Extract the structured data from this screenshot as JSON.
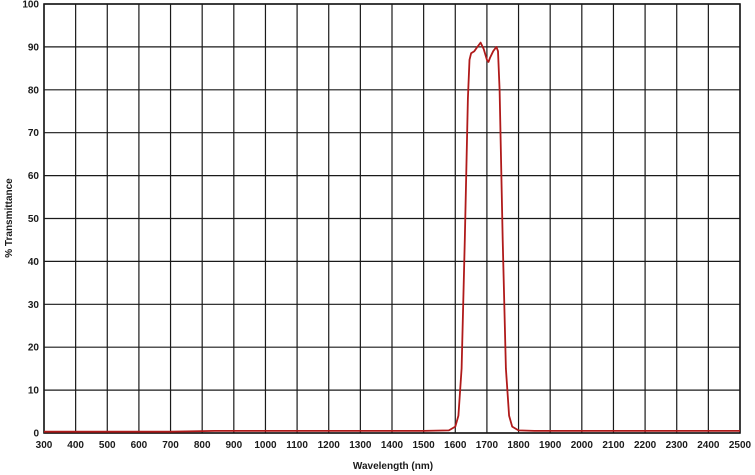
{
  "chart_data": {
    "type": "line",
    "title": "",
    "xlabel": "Wavelength (nm)",
    "ylabel": "% Transmittance",
    "xlim": [
      300,
      2500
    ],
    "ylim": [
      0,
      100
    ],
    "x_ticks": [
      300,
      400,
      500,
      600,
      700,
      800,
      900,
      1000,
      1100,
      1200,
      1300,
      1400,
      1500,
      1600,
      1700,
      1800,
      1900,
      2000,
      2100,
      2200,
      2300,
      2400,
      2500
    ],
    "y_ticks": [
      0,
      10,
      20,
      30,
      40,
      50,
      60,
      70,
      80,
      90,
      100
    ],
    "grid": true,
    "line_color": "#b01a1a",
    "grid_color": "#1a1a1a",
    "series": [
      {
        "x": [
          300,
          700,
          840,
          1000,
          1300,
          1500,
          1580,
          1600,
          1610,
          1620,
          1630,
          1640,
          1645,
          1650,
          1660,
          1670,
          1680,
          1690,
          1700,
          1705,
          1710,
          1720,
          1730,
          1735,
          1740,
          1750,
          1760,
          1770,
          1780,
          1800,
          1850,
          2000,
          2500
        ],
        "values": [
          0.3,
          0.3,
          0.5,
          0.5,
          0.5,
          0.5,
          0.6,
          1.5,
          4,
          15,
          45,
          78,
          87,
          88.5,
          89,
          90,
          91,
          89.5,
          87,
          86.5,
          87.5,
          89,
          90,
          89,
          80,
          45,
          15,
          4,
          1.5,
          0.6,
          0.5,
          0.5,
          0.5
        ]
      }
    ]
  }
}
